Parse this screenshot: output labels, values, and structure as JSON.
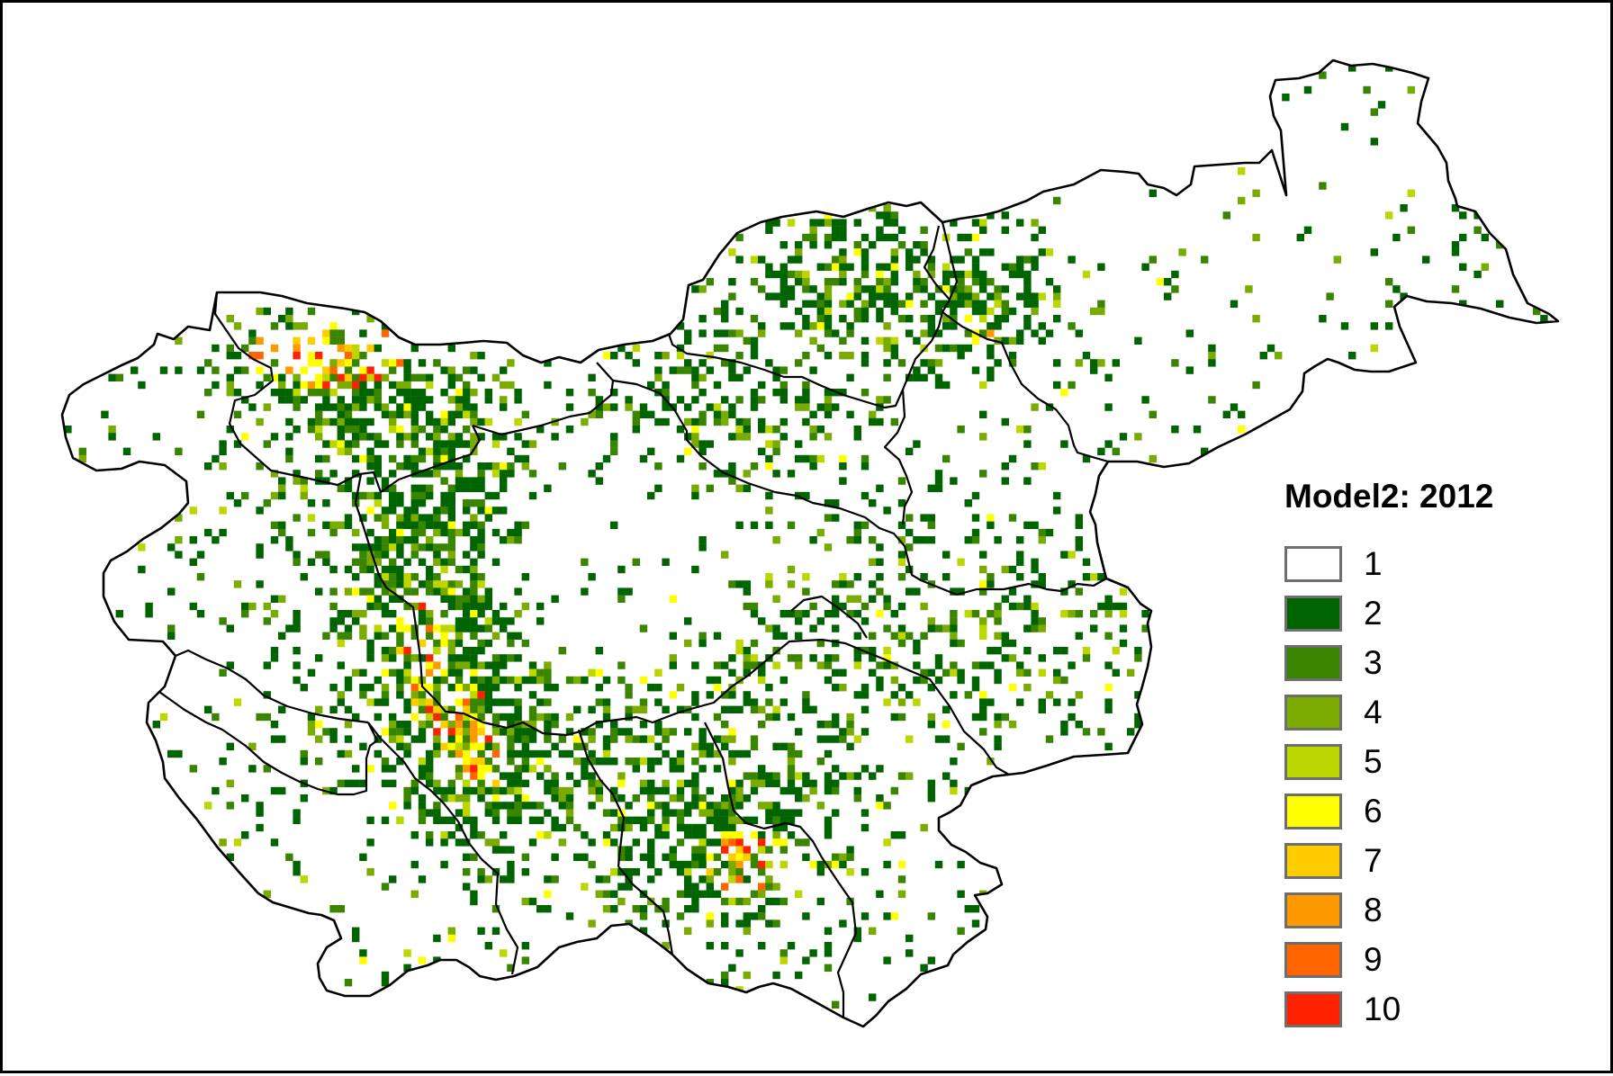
{
  "map": {
    "legend_title": "Model2: 2012",
    "classes": [
      {
        "label": "1",
        "color": "#ffffff"
      },
      {
        "label": "2",
        "color": "#006400"
      },
      {
        "label": "3",
        "color": "#3a8500"
      },
      {
        "label": "4",
        "color": "#7aab00"
      },
      {
        "label": "5",
        "color": "#bcd600"
      },
      {
        "label": "6",
        "color": "#ffff00"
      },
      {
        "label": "7",
        "color": "#ffcc00"
      },
      {
        "label": "8",
        "color": "#ff9900"
      },
      {
        "label": "9",
        "color": "#ff6600"
      },
      {
        "label": "10",
        "color": "#ff2200"
      }
    ],
    "boundary_color": "#000000"
  }
}
